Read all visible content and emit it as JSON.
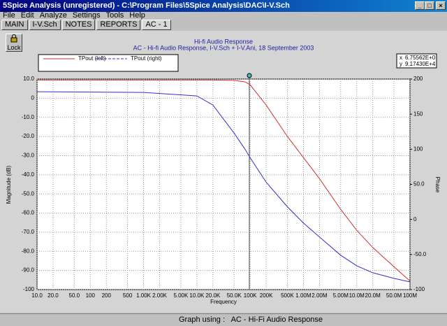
{
  "window": {
    "title": "5Spice Analysis (unregistered) - C:\\Program Files\\5Spice Analysis\\DAC\\I-V.Sch",
    "menu": [
      "File",
      "Edit",
      "Analyze",
      "Settings",
      "Tools",
      "Help"
    ],
    "tabs": [
      "MAIN",
      "I-V.Sch",
      "NOTES",
      "REPORTS",
      "AC - 1"
    ],
    "lock_button": "Lock",
    "status": "Graph using :   AC - Hi-Fi Audio Response"
  },
  "cursor_readout": [
    [
      "x",
      "6.75562E+0"
    ],
    [
      "y",
      "9.17430E+4"
    ]
  ],
  "chart_data": {
    "type": "line",
    "title": "Hi-fi Audio Response",
    "subtitle": "AC - Hi-fi Audio Response,    I-V.Sch + I-V.Ani,   18 September 2003",
    "x_label": "Frequency",
    "y_label": "Magnitude (dB)",
    "y2_label": "Phase",
    "x_scale": "log",
    "grid": true,
    "x": [
      10,
      1000,
      10000,
      20000,
      50000,
      80000,
      100000,
      200000,
      500000,
      1000000,
      2000000,
      5000000,
      10000000,
      20000000,
      50000000,
      100000000
    ],
    "series": [
      {
        "name": "TPout (left)",
        "color": "#d03030",
        "values": [
          9.5,
          9.5,
          9.5,
          9.5,
          9.3,
          8.5,
          7,
          -3.6,
          -20,
          -31,
          -42,
          -58,
          -69,
          -78,
          -88,
          -95.5
        ]
      },
      {
        "name": "TPout (right)",
        "color": "#3030d0",
        "axis": "y2",
        "values": [
          182,
          181,
          176,
          163,
          123,
          100,
          88,
          53,
          18,
          -5,
          -25,
          -51,
          -66,
          -76,
          -84,
          -89
        ]
      }
    ],
    "xlim": [
      10,
      100000000
    ],
    "ylim": [
      -100,
      10
    ],
    "y2lim": [
      -100,
      200
    ],
    "xticks": [
      {
        "value": 10,
        "label": "10.0"
      },
      {
        "value": 20,
        "label": "20.0"
      },
      {
        "value": 50,
        "label": "50.0"
      },
      100,
      200,
      500,
      {
        "value": 1000,
        "label": "1.00K"
      },
      {
        "value": 2000,
        "label": "2.00K"
      },
      {
        "value": 5000,
        "label": "5.00K"
      },
      {
        "value": 10000,
        "label": "10.0K"
      },
      {
        "value": 20000,
        "label": "20.0K"
      },
      {
        "value": 50000,
        "label": "50.0K"
      },
      {
        "value": 100000,
        "label": "100K"
      },
      {
        "value": 200000,
        "label": "200K"
      },
      {
        "value": 500000,
        "label": "500K"
      },
      {
        "value": 1000000,
        "label": "1.00M"
      },
      {
        "value": 2000000,
        "label": "2.00M"
      },
      {
        "value": 5000000,
        "label": "5.00M"
      },
      {
        "value": 10000000,
        "label": "10.0M"
      },
      {
        "value": 20000000,
        "label": "20.0M"
      },
      {
        "value": 50000000,
        "label": "50.0M"
      },
      {
        "value": 100000000,
        "label": "100M"
      }
    ],
    "yticks": [
      {
        "value": 10,
        "label": "10.0"
      },
      0,
      {
        "value": -10,
        "label": "-10.0"
      },
      {
        "value": -20,
        "label": "-20.0"
      },
      {
        "value": -30,
        "label": "-30.0"
      },
      {
        "value": -40,
        "label": "-40.0"
      },
      {
        "value": -50,
        "label": "-50.0"
      },
      {
        "value": -60,
        "label": "-60.0"
      },
      {
        "value": -70,
        "label": "-70.0"
      },
      {
        "value": -80,
        "label": "-80.0"
      },
      {
        "value": -90,
        "label": "-90.0"
      },
      -100
    ],
    "y2ticks": [
      200,
      150,
      100,
      {
        "value": 50,
        "label": "50.0"
      },
      0,
      {
        "value": -50,
        "label": "-50.0"
      },
      -100
    ]
  }
}
